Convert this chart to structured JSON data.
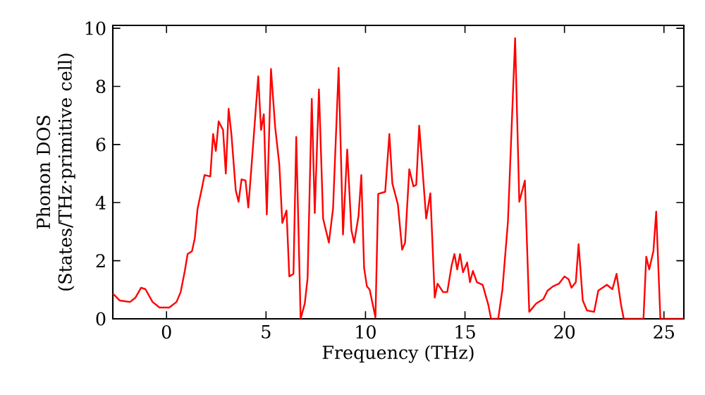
{
  "chart_data": {
    "type": "line",
    "xlabel": "Frequency (THz)",
    "ylabel": "Phonon DOS (States/THz·primitive cell)",
    "xlim": [
      -2.7,
      26
    ],
    "ylim": [
      0,
      10.1
    ],
    "xticks": [
      0,
      5,
      10,
      15,
      20,
      25
    ],
    "yticks": [
      0,
      2,
      4,
      6,
      8,
      10
    ],
    "marker": "none",
    "line_style": "solid",
    "series": [
      {
        "color": "#ff0000",
        "x": [
          -2.7,
          -2.35,
          -1.84,
          -1.56,
          -1.28,
          -1.06,
          -0.7,
          -0.35,
          0.14,
          0.5,
          0.71,
          0.92,
          1.06,
          1.28,
          1.42,
          1.56,
          1.77,
          1.91,
          2.2,
          2.34,
          2.48,
          2.62,
          2.84,
          2.98,
          3.12,
          3.26,
          3.48,
          3.62,
          3.77,
          3.97,
          4.11,
          4.26,
          4.61,
          4.75,
          4.89,
          5.04,
          5.25,
          5.46,
          5.67,
          5.82,
          6.03,
          6.17,
          6.38,
          6.52,
          6.74,
          6.95,
          7.09,
          7.3,
          7.45,
          7.66,
          7.87,
          8.16,
          8.37,
          8.65,
          8.87,
          9.08,
          9.29,
          9.43,
          9.65,
          9.79,
          9.93,
          10.07,
          10.21,
          10.5,
          10.64,
          10.99,
          11.2,
          11.35,
          11.63,
          11.84,
          11.99,
          12.2,
          12.41,
          12.55,
          12.7,
          13.05,
          13.26,
          13.48,
          13.62,
          13.9,
          14.11,
          14.33,
          14.47,
          14.61,
          14.75,
          14.9,
          15.11,
          15.25,
          15.4,
          15.6,
          15.89,
          16.17,
          16.31,
          16.67,
          16.88,
          17.16,
          17.52,
          17.73,
          18.01,
          18.23,
          18.58,
          18.94,
          19.15,
          19.43,
          19.72,
          20.0,
          20.21,
          20.35,
          20.57,
          20.71,
          20.92,
          21.13,
          21.49,
          21.7,
          22.13,
          22.41,
          22.62,
          22.84,
          22.98,
          23.97,
          24.11,
          24.26,
          24.47,
          24.61,
          24.82,
          26.0
        ],
        "values": [
          0.87,
          0.63,
          0.58,
          0.73,
          1.07,
          1.02,
          0.58,
          0.39,
          0.39,
          0.58,
          0.92,
          1.65,
          2.23,
          2.33,
          2.77,
          3.79,
          4.47,
          4.95,
          4.9,
          6.36,
          5.78,
          6.8,
          6.5,
          5.0,
          7.23,
          6.36,
          4.42,
          4.03,
          4.8,
          4.76,
          3.83,
          5.15,
          8.35,
          6.5,
          7.04,
          3.59,
          8.6,
          6.6,
          5.3,
          3.3,
          3.73,
          1.46,
          1.55,
          6.26,
          0,
          0.53,
          1.4,
          7.57,
          3.64,
          7.9,
          3.45,
          2.62,
          3.8,
          8.64,
          2.9,
          5.83,
          3.06,
          2.62,
          3.54,
          4.95,
          1.75,
          1.12,
          1.0,
          0.05,
          4.3,
          4.37,
          6.36,
          4.66,
          3.93,
          2.38,
          2.62,
          5.15,
          4.56,
          4.61,
          6.65,
          3.45,
          4.32,
          0.73,
          1.21,
          0.92,
          0.92,
          1.84,
          2.23,
          1.7,
          2.23,
          1.6,
          1.94,
          1.26,
          1.65,
          1.26,
          1.17,
          0.49,
          0,
          0,
          1.0,
          3.35,
          9.66,
          4.03,
          4.76,
          0.24,
          0.53,
          0.68,
          0.97,
          1.12,
          1.21,
          1.46,
          1.36,
          1.07,
          1.26,
          2.57,
          0.63,
          0.29,
          0.24,
          0.97,
          1.17,
          1.02,
          1.55,
          0.49,
          0,
          0,
          2.14,
          1.7,
          2.33,
          3.69,
          0,
          0
        ]
      }
    ]
  }
}
